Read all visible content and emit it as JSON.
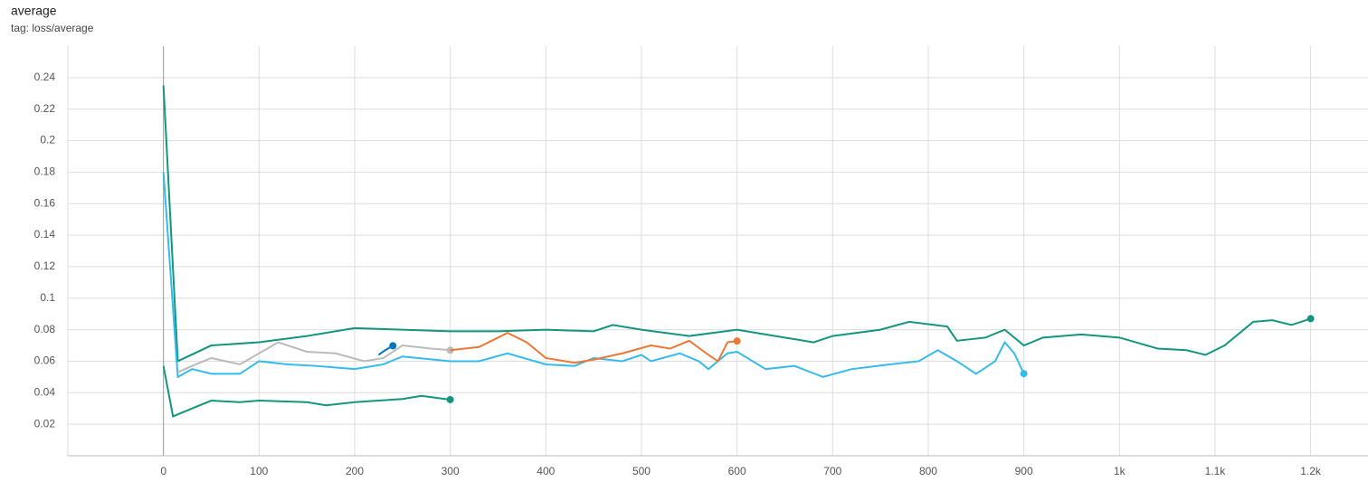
{
  "chart_data": {
    "type": "line",
    "title": "average",
    "subtitle": "tag: loss/average",
    "xlim": [
      -100,
      1260
    ],
    "ylim": [
      0,
      0.26
    ],
    "xticks": [
      0,
      100,
      200,
      300,
      400,
      500,
      600,
      700,
      800,
      900,
      {
        "value": 1000,
        "label": "1k"
      },
      {
        "value": 1100,
        "label": "1.1k"
      },
      {
        "value": 1200,
        "label": "1.2k"
      }
    ],
    "yticks": [
      0.02,
      0.04,
      0.06,
      0.08,
      0.1,
      0.12,
      0.14,
      0.16,
      0.18,
      0.2,
      0.22,
      0.24
    ],
    "grid": true,
    "series": [
      {
        "color": "#12967e",
        "x": [
          0,
          15,
          50,
          100,
          150,
          200,
          250,
          300,
          350,
          400,
          450,
          470,
          500,
          550,
          600,
          650,
          680,
          700,
          750,
          780,
          820,
          830,
          860,
          880,
          900,
          920,
          960,
          1000,
          1040,
          1070,
          1090,
          1110,
          1140,
          1160,
          1180,
          1200
        ],
        "values": [
          0.235,
          0.06,
          0.07,
          0.072,
          0.076,
          0.081,
          0.08,
          0.079,
          0.079,
          0.08,
          0.079,
          0.083,
          0.08,
          0.076,
          0.08,
          0.075,
          0.072,
          0.076,
          0.08,
          0.085,
          0.082,
          0.073,
          0.075,
          0.08,
          0.07,
          0.075,
          0.077,
          0.075,
          0.068,
          0.067,
          0.064,
          0.07,
          0.085,
          0.086,
          0.083,
          0.087
        ]
      },
      {
        "color": "#12967e",
        "x": [
          0,
          10,
          30,
          50,
          80,
          100,
          150,
          170,
          200,
          250,
          270,
          300
        ],
        "values": [
          0.057,
          0.025,
          0.03,
          0.035,
          0.034,
          0.035,
          0.034,
          0.032,
          0.034,
          0.036,
          0.038,
          0.0356
        ]
      },
      {
        "color": "#33bbee",
        "x": [
          0,
          15,
          30,
          50,
          80,
          100,
          130,
          160,
          200,
          230,
          250,
          300,
          330,
          360,
          400,
          430,
          450,
          480,
          500,
          510,
          540,
          560,
          570,
          590,
          600,
          630,
          660,
          690,
          720,
          760,
          790,
          810,
          830,
          850,
          870,
          880,
          890,
          900
        ],
        "values": [
          0.18,
          0.05,
          0.055,
          0.052,
          0.052,
          0.06,
          0.058,
          0.057,
          0.055,
          0.058,
          0.063,
          0.06,
          0.06,
          0.065,
          0.058,
          0.057,
          0.062,
          0.06,
          0.064,
          0.06,
          0.065,
          0.06,
          0.055,
          0.065,
          0.066,
          0.055,
          0.057,
          0.05,
          0.055,
          0.058,
          0.06,
          0.067,
          0.06,
          0.052,
          0.06,
          0.072,
          0.065,
          0.0521
        ]
      },
      {
        "color": "#bbbbbb",
        "x": [
          15,
          30,
          50,
          80,
          120,
          150,
          180,
          210,
          230,
          250,
          280,
          300
        ],
        "values": [
          0.053,
          0.057,
          0.062,
          0.058,
          0.072,
          0.066,
          0.065,
          0.06,
          0.062,
          0.07,
          0.068,
          0.067
        ]
      },
      {
        "color": "#0077bb",
        "x": [
          225,
          232,
          240
        ],
        "values": [
          0.064,
          0.067,
          0.0698
        ]
      },
      {
        "color": "#ee7733",
        "x": [
          300,
          330,
          340,
          360,
          380,
          400,
          430,
          450,
          480,
          510,
          530,
          550,
          570,
          580,
          590,
          600
        ],
        "values": [
          0.067,
          0.069,
          0.072,
          0.078,
          0.072,
          0.062,
          0.059,
          0.061,
          0.065,
          0.07,
          0.068,
          0.073,
          0.064,
          0.06,
          0.072,
          0.0728
        ]
      }
    ]
  }
}
